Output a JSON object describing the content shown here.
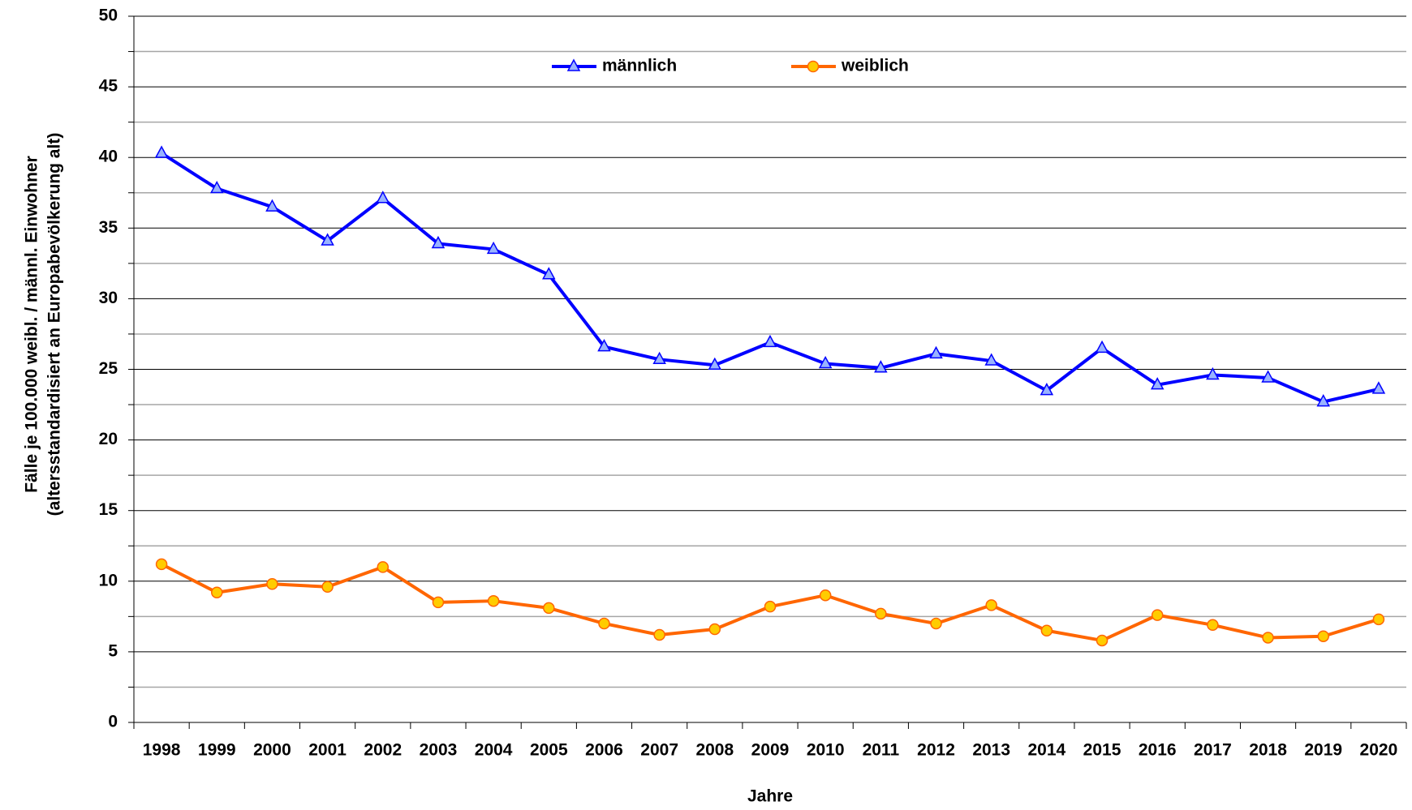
{
  "chart_data": {
    "type": "line",
    "ylabel": [
      "Fälle je 100.000 weibl. / männl. Einwohner",
      "(altersstandardisiert an Europabevölkerung alt)"
    ],
    "xlabel": "Jahre",
    "categories": [
      "1998",
      "1999",
      "2000",
      "2001",
      "2002",
      "2003",
      "2004",
      "2005",
      "2006",
      "2007",
      "2008",
      "2009",
      "2010",
      "2011",
      "2012",
      "2013",
      "2014",
      "2015",
      "2016",
      "2017",
      "2018",
      "2019",
      "2020"
    ],
    "series": [
      {
        "name": "männlich",
        "color": "#0000ff",
        "marker": "triangle",
        "marker_fill": "#99b3ff",
        "values": [
          40.3,
          37.8,
          36.5,
          34.1,
          37.1,
          33.9,
          33.5,
          31.7,
          26.6,
          25.7,
          25.3,
          26.9,
          25.4,
          25.1,
          26.1,
          25.6,
          23.5,
          26.5,
          23.9,
          24.6,
          24.4,
          22.7,
          23.6
        ]
      },
      {
        "name": "weiblich",
        "color": "#ff6600",
        "marker": "circle",
        "marker_fill": "#ffcc00",
        "values": [
          11.2,
          9.2,
          9.8,
          9.6,
          11.0,
          8.5,
          8.6,
          8.1,
          7.0,
          6.2,
          6.6,
          8.2,
          9.0,
          7.7,
          7.0,
          8.3,
          6.5,
          5.8,
          7.6,
          6.9,
          6.0,
          6.1,
          7.3
        ]
      }
    ],
    "ylim": [
      0,
      50
    ],
    "yticks": [
      0,
      5,
      10,
      15,
      20,
      25,
      30,
      35,
      40,
      45,
      50
    ],
    "minor_yticks": [
      2.5,
      7.5,
      12.5,
      17.5,
      22.5,
      27.5,
      32.5,
      37.5,
      42.5,
      47.5
    ],
    "grid": true,
    "legend": "top"
  }
}
